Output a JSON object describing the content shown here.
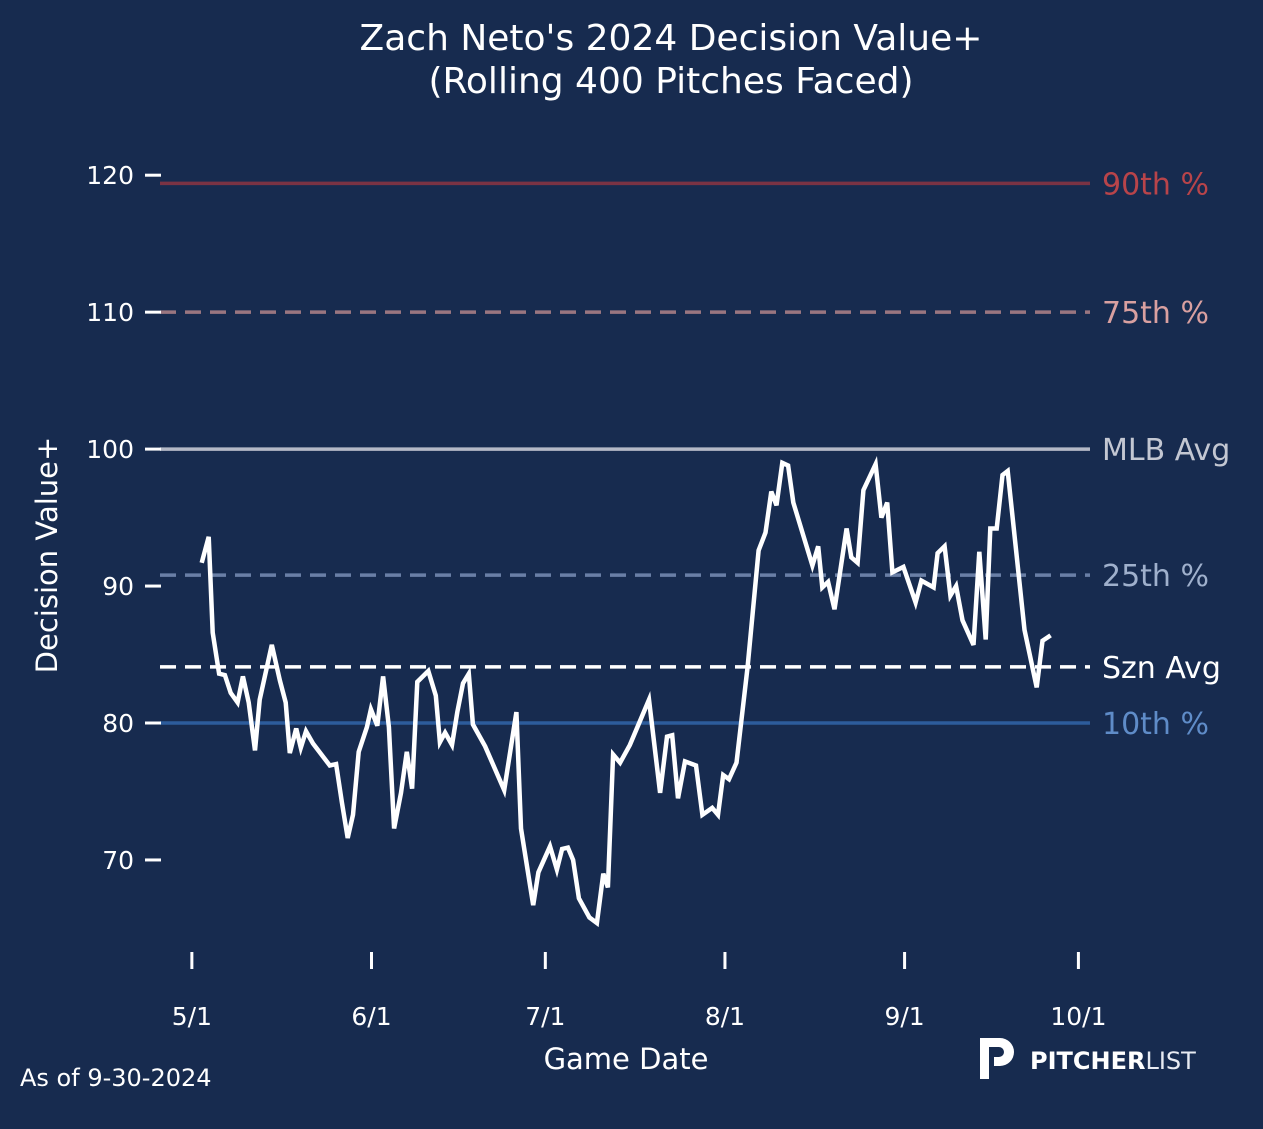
{
  "chart_data": {
    "type": "line",
    "title": "Zach Neto's 2024 Decision Value+",
    "subtitle": "(Rolling 400 Pitches Faced)",
    "xlabel": "Game Date",
    "ylabel": "Decision Value+",
    "x_unit": "days since 5/1/2024",
    "xlim": [
      -5.5,
      155
    ],
    "ylim": [
      61.6,
      123.3
    ],
    "grid": false,
    "x_ticks": [
      {
        "value": 0,
        "label": "5/1"
      },
      {
        "value": 31,
        "label": "6/1"
      },
      {
        "value": 61,
        "label": "7/1"
      },
      {
        "value": 92,
        "label": "8/1"
      },
      {
        "value": 123,
        "label": "9/1"
      },
      {
        "value": 153,
        "label": "10/1"
      }
    ],
    "y_ticks": [
      {
        "value": 70,
        "label": "70"
      },
      {
        "value": 80,
        "label": "80"
      },
      {
        "value": 90,
        "label": "90"
      },
      {
        "value": 100,
        "label": "100"
      },
      {
        "value": 110,
        "label": "110"
      },
      {
        "value": 120,
        "label": "120"
      }
    ],
    "reference_lines": [
      {
        "name": "90th",
        "label": "90th %",
        "value": 119.4,
        "style": "solid",
        "color": "#7a3344",
        "label_color": "#b8444a"
      },
      {
        "name": "75th",
        "label": "75th %",
        "value": 110,
        "style": "dashed",
        "color": "#9a7680",
        "label_color": "#d9a0a0"
      },
      {
        "name": "mlb-avg",
        "label": "MLB Avg",
        "value": 100,
        "style": "solid",
        "color": "#b4b9c6",
        "label_color": "#c3c7d2"
      },
      {
        "name": "25th",
        "label": "25th %",
        "value": 90.8,
        "style": "dashed",
        "color": "#6a7fa6",
        "label_color": "#9fb0cc"
      },
      {
        "name": "szn-avg",
        "label": "Szn Avg",
        "value": 84.1,
        "style": "dashed",
        "color": "#ffffff",
        "label_color": "#ffffff"
      },
      {
        "name": "10th",
        "label": "10th %",
        "value": 80,
        "style": "solid",
        "color": "#2d5c9c",
        "label_color": "#5f8cc8"
      }
    ],
    "series": [
      {
        "name": "Decision Value+",
        "color": "#ffffff",
        "x": [
          1.7,
          2.9,
          3.6,
          4.7,
          5.7,
          6.7,
          7.9,
          8.8,
          9.8,
          10.9,
          11.7,
          13.8,
          15.2,
          16.2,
          16.9,
          18.0,
          18.8,
          19.7,
          20.9,
          23.8,
          24.9,
          25.9,
          26.9,
          27.8,
          28.8,
          30.2,
          30.9,
          32.0,
          33.0,
          34.0,
          34.9,
          36.1,
          37.1,
          38.0,
          38.9,
          40.8,
          42.1,
          42.8,
          43.7,
          44.9,
          45.8,
          46.8,
          47.8,
          48.5,
          50.6,
          53.9,
          56.0,
          56.8,
          58.9,
          59.8,
          61.8,
          63.0,
          63.9,
          64.9,
          65.8,
          66.8,
          68.6,
          69.9,
          71.0,
          71.8,
          72.7,
          73.9,
          75.6,
          78.9,
          80.8,
          82.0,
          82.9,
          83.9,
          85.1,
          87.0,
          88.1,
          89.8,
          90.8,
          91.7,
          92.7,
          94.0,
          95.9,
          97.8,
          99.0,
          100.0,
          100.9,
          101.9,
          102.9,
          103.8,
          107.1,
          108.1,
          108.8,
          109.8,
          110.9,
          113.0,
          113.8,
          114.9,
          115.9,
          118.0,
          119.0,
          120.0,
          120.9,
          122.8,
          124.9,
          125.9,
          128.0,
          128.7,
          129.9,
          130.9,
          131.9,
          133.0,
          134.9,
          135.9,
          137.0,
          137.8,
          138.9,
          139.9,
          140.8,
          143.7,
          145.8,
          146.8,
          148.2
        ],
        "y": [
          91.7,
          93.6,
          86.6,
          83.6,
          83.5,
          82.2,
          81.5,
          83.4,
          81.5,
          78.0,
          81.7,
          85.7,
          83.1,
          81.5,
          77.8,
          79.6,
          78.2,
          79.4,
          78.5,
          76.9,
          77.0,
          74.2,
          71.6,
          73.3,
          77.9,
          79.7,
          81.0,
          79.8,
          83.4,
          79.7,
          72.3,
          74.9,
          77.9,
          75.2,
          83.0,
          83.8,
          82.0,
          78.6,
          79.3,
          78.4,
          80.8,
          82.9,
          83.6,
          79.9,
          78.3,
          75.1,
          80.8,
          72.3,
          66.7,
          69.1,
          71.0,
          69.3,
          70.8,
          70.9,
          70.0,
          67.2,
          65.8,
          65.4,
          69.0,
          68.0,
          77.7,
          77.1,
          78.4,
          81.7,
          74.9,
          79.0,
          79.1,
          74.5,
          77.2,
          76.9,
          73.3,
          73.8,
          73.3,
          76.2,
          75.9,
          77.1,
          84.1,
          92.6,
          93.9,
          96.9,
          95.9,
          99.0,
          98.8,
          96.1,
          91.5,
          92.9,
          89.9,
          90.3,
          88.3,
          94.2,
          92.1,
          91.7,
          97.0,
          98.9,
          95.0,
          96.1,
          91.0,
          91.4,
          88.8,
          90.4,
          89.9,
          92.4,
          92.9,
          89.3,
          90.0,
          87.5,
          85.7,
          92.5,
          86.1,
          94.2,
          94.2,
          98.1,
          98.4,
          86.8,
          82.6,
          86.0,
          86.4
        ]
      }
    ]
  },
  "footer": {
    "as_of": "As of 9-30-2024",
    "logo_bold": "PITCHER",
    "logo_light": "LIST"
  },
  "colors": {
    "background": "#172b4f",
    "text": "#ffffff"
  }
}
